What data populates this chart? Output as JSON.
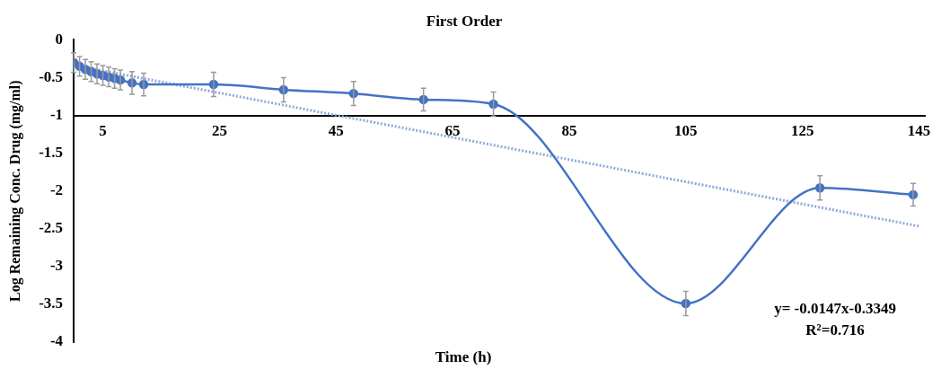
{
  "chart_data": {
    "type": "line",
    "title": "First Order",
    "xlabel": "Time (h)",
    "ylabel": "Log Remaining Conc. Drug (mg/ml)",
    "xlim": [
      0,
      146
    ],
    "xticks": [
      5,
      25,
      45,
      65,
      85,
      105,
      125,
      145
    ],
    "ylim": [
      -4,
      0
    ],
    "yticks": [
      0,
      -0.5,
      -1,
      -1.5,
      -2,
      -2.5,
      -3,
      -3.5,
      -4
    ],
    "grid": false,
    "legend": false,
    "series": [
      {
        "color": "#4472c4",
        "marker": "circle",
        "line_style": "solid",
        "x": [
          0,
          1,
          2,
          3,
          4,
          5,
          6,
          7,
          8,
          10,
          12,
          24,
          36,
          48,
          60,
          72,
          105,
          128,
          144
        ],
        "values": [
          -0.3,
          -0.35,
          -0.39,
          -0.42,
          -0.45,
          -0.47,
          -0.49,
          -0.51,
          -0.53,
          -0.57,
          -0.59,
          -0.59,
          -0.66,
          -0.71,
          -0.79,
          -0.85,
          -3.49,
          -1.96,
          -2.05
        ],
        "errors": [
          0.13,
          0.13,
          0.13,
          0.13,
          0.13,
          0.13,
          0.13,
          0.13,
          0.13,
          0.15,
          0.15,
          0.16,
          0.16,
          0.16,
          0.15,
          0.16,
          0.16,
          0.16,
          0.15
        ]
      },
      {
        "type": "line",
        "color": "#8faadc",
        "marker": "none",
        "line_style": "dotted",
        "x": [
          0,
          145
        ],
        "values": [
          -0.3349,
          -2.4664
        ]
      }
    ],
    "annotations": [
      "y= -0.0147x-0.3349",
      "R²=0.716"
    ]
  }
}
